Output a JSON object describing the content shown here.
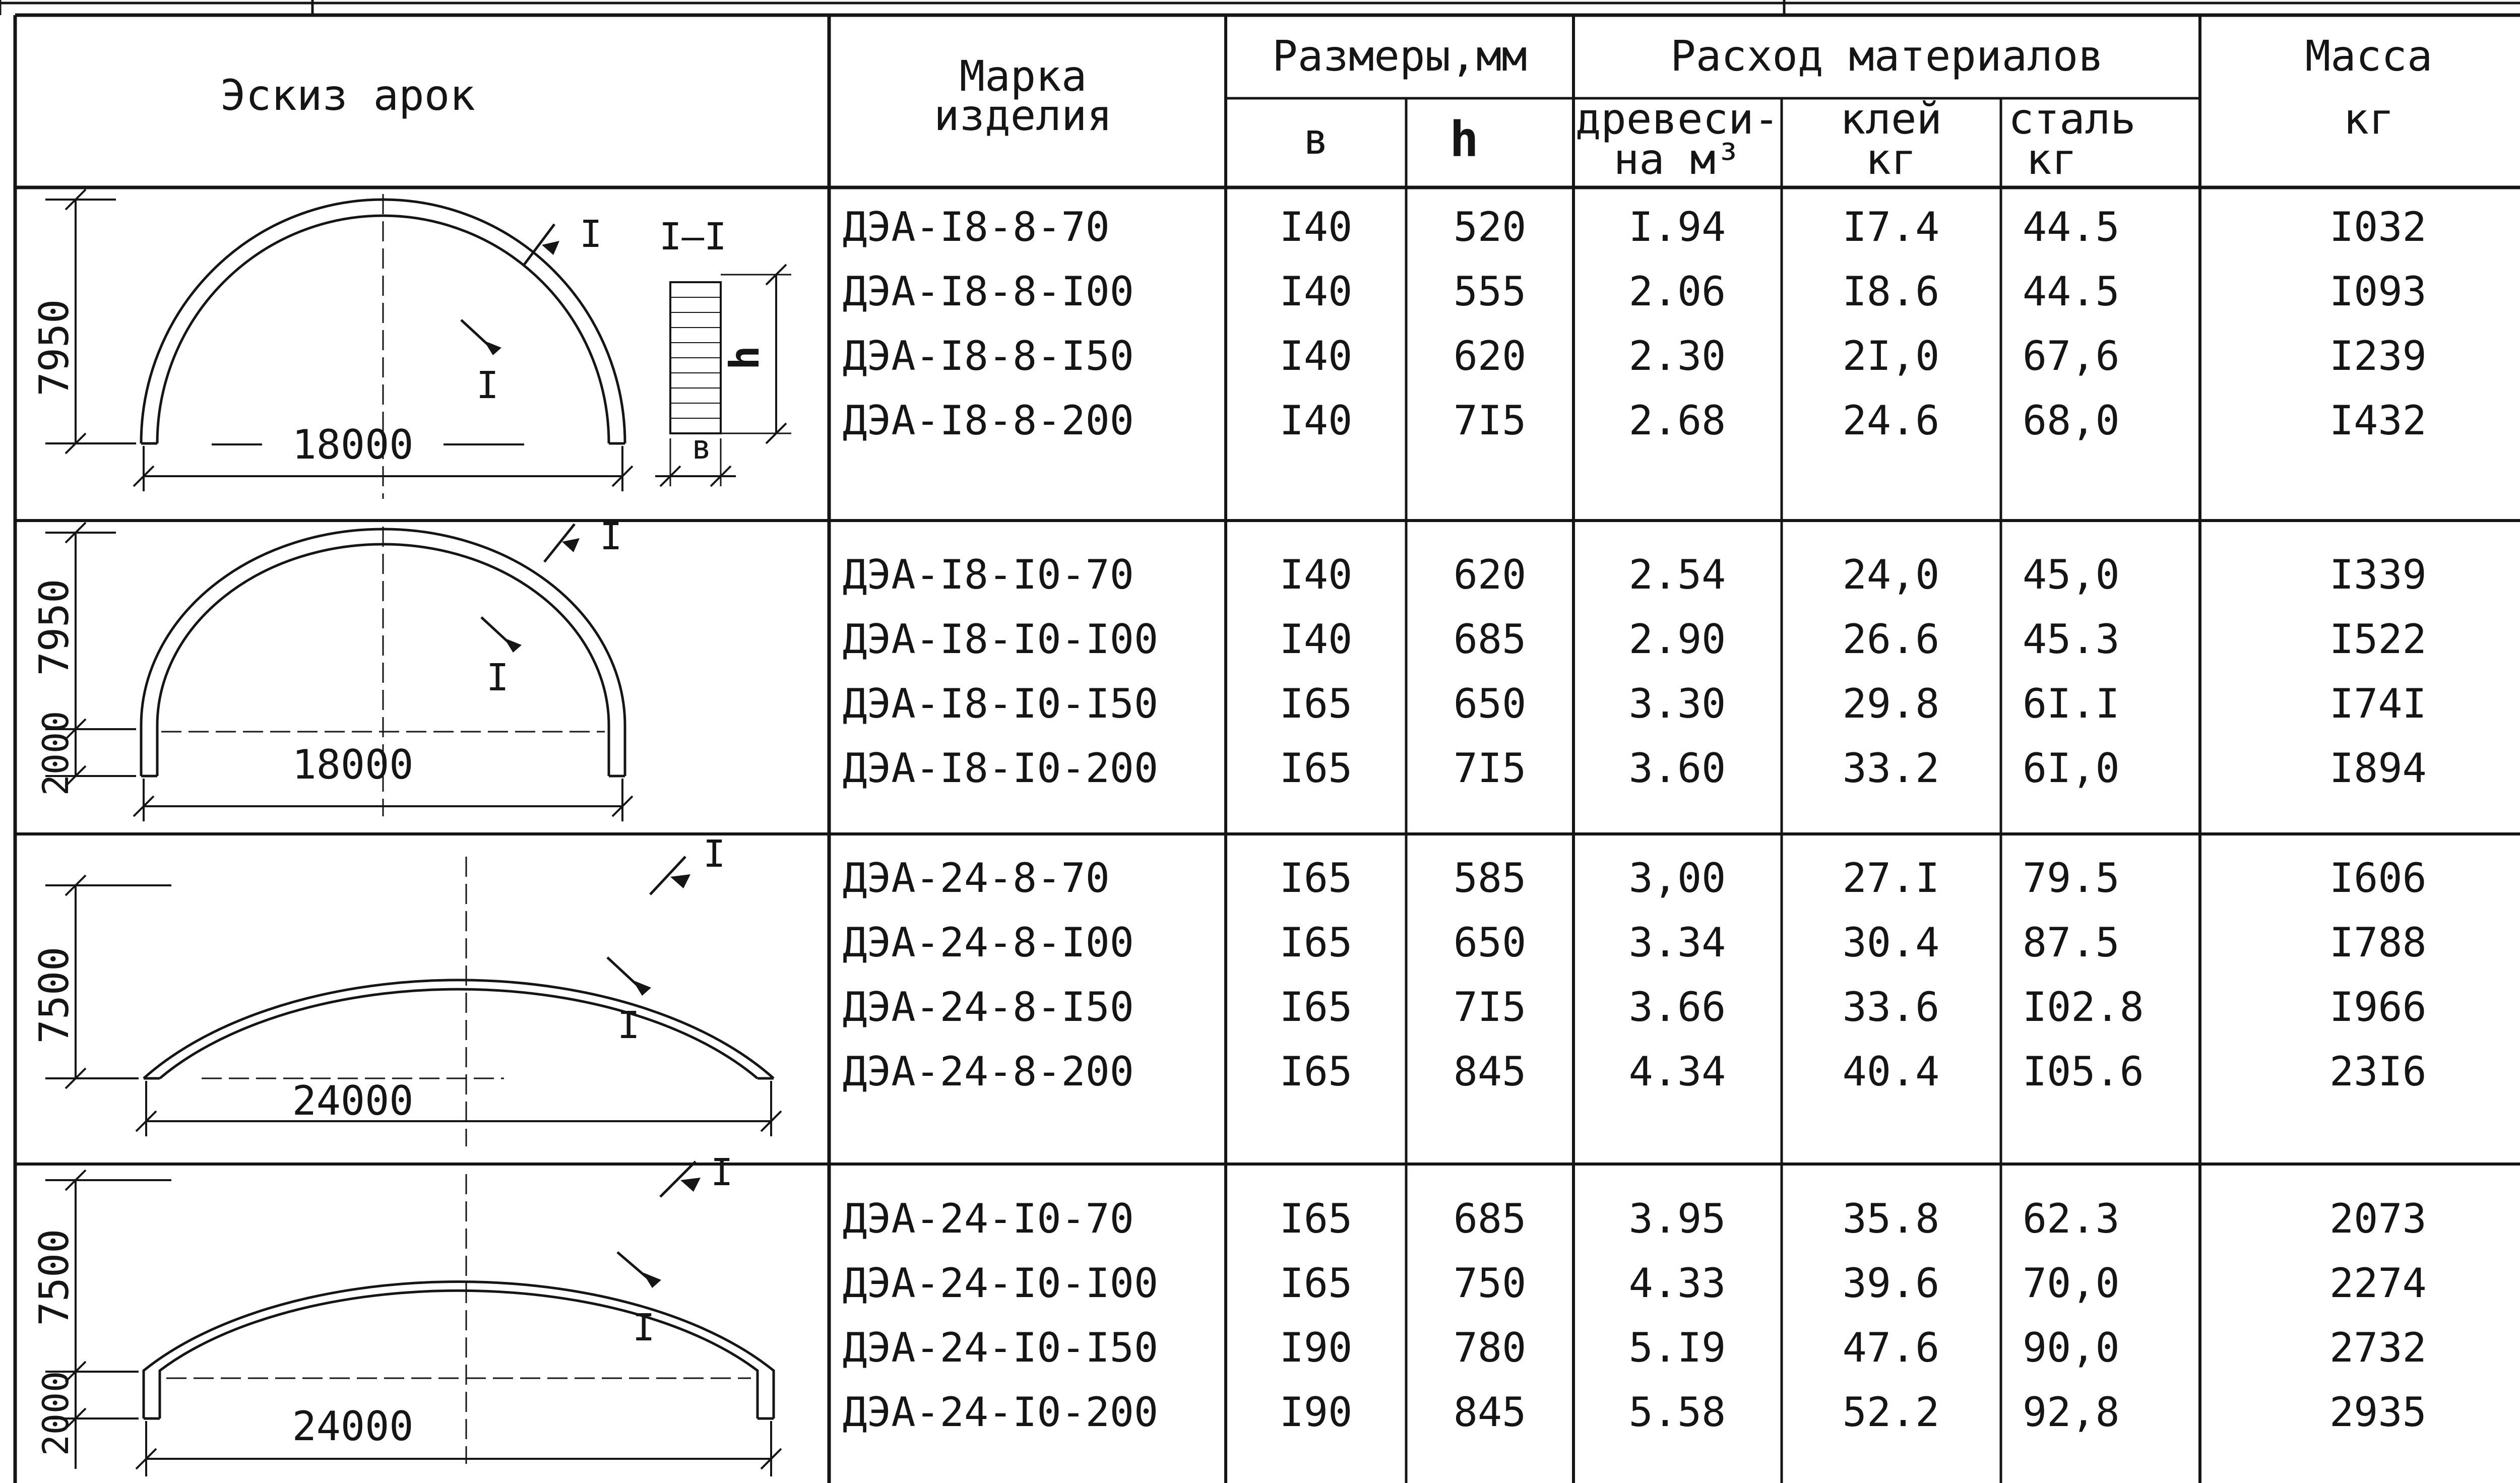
{
  "header": {
    "sketch": "Эскиз арок",
    "mark_line1": "Марка",
    "mark_line2": "изделия",
    "sizes": "Размеры,мм",
    "sizes_b": "в",
    "sizes_h": "h",
    "materials": "Расход материалов",
    "wood_line1": "древеси-",
    "wood_line2": "на м³",
    "glue_line1": "клей",
    "glue_line2": "кг",
    "steel_line1": "сталь",
    "steel_line2": "кг",
    "mass_line1": "Масса",
    "mass_line2": "кг"
  },
  "groups": [
    {
      "sketch": {
        "height_label": "7950",
        "span_label": "18000",
        "wall_label": "",
        "section_mark": "I",
        "section_title": "I–I",
        "section_b": "в",
        "section_h": "h"
      },
      "rows": [
        {
          "mark": "ДЭА-I8-8-70",
          "b": "I40",
          "h": "520",
          "wood": "I.94",
          "glue": "I7.4",
          "steel": "44.5",
          "mass": "I032"
        },
        {
          "mark": "ДЭА-I8-8-I00",
          "b": "I40",
          "h": "555",
          "wood": "2.06",
          "glue": "I8.6",
          "steel": "44.5",
          "mass": "I093"
        },
        {
          "mark": "ДЭА-I8-8-I50",
          "b": "I40",
          "h": "620",
          "wood": "2.30",
          "glue": "2I,0",
          "steel": "67,6",
          "mass": "I239"
        },
        {
          "mark": "ДЭА-I8-8-200",
          "b": "I40",
          "h": "7I5",
          "wood": "2.68",
          "glue": "24.6",
          "steel": "68,0",
          "mass": "I432"
        }
      ]
    },
    {
      "sketch": {
        "height_label": "7950",
        "span_label": "18000",
        "wall_label": "2000",
        "section_mark": "I"
      },
      "rows": [
        {
          "mark": "ДЭА-I8-I0-70",
          "b": "I40",
          "h": "620",
          "wood": "2.54",
          "glue": "24,0",
          "steel": "45,0",
          "mass": "I339"
        },
        {
          "mark": "ДЭА-I8-I0-I00",
          "b": "I40",
          "h": "685",
          "wood": "2.90",
          "glue": "26.6",
          "steel": "45.3",
          "mass": "I522"
        },
        {
          "mark": "ДЭА-I8-I0-I50",
          "b": "I65",
          "h": "650",
          "wood": "3.30",
          "glue": "29.8",
          "steel": "6I.I",
          "mass": "I74I"
        },
        {
          "mark": "ДЭА-I8-I0-200",
          "b": "I65",
          "h": "7I5",
          "wood": "3.60",
          "glue": "33.2",
          "steel": "6I,0",
          "mass": "I894"
        }
      ]
    },
    {
      "sketch": {
        "height_label": "7500",
        "span_label": "24000",
        "wall_label": "",
        "section_mark": "I"
      },
      "rows": [
        {
          "mark": "ДЭА-24-8-70",
          "b": "I65",
          "h": "585",
          "wood": "3,00",
          "glue": "27.I",
          "steel": "79.5",
          "mass": "I606"
        },
        {
          "mark": "ДЭА-24-8-I00",
          "b": "I65",
          "h": "650",
          "wood": "3.34",
          "glue": "30.4",
          "steel": "87.5",
          "mass": "I788"
        },
        {
          "mark": "ДЭА-24-8-I50",
          "b": "I65",
          "h": "7I5",
          "wood": "3.66",
          "glue": "33.6",
          "steel": "I02.8",
          "mass": "I966"
        },
        {
          "mark": "ДЭА-24-8-200",
          "b": "I65",
          "h": "845",
          "wood": "4.34",
          "glue": "40.4",
          "steel": "I05.6",
          "mass": "23I6"
        }
      ]
    },
    {
      "sketch": {
        "height_label": "7500",
        "span_label": "24000",
        "wall_label": "2000",
        "section_mark": "I"
      },
      "rows": [
        {
          "mark": "ДЭА-24-I0-70",
          "b": "I65",
          "h": "685",
          "wood": "3.95",
          "glue": "35.8",
          "steel": "62.3",
          "mass": "2073"
        },
        {
          "mark": "ДЭА-24-I0-I00",
          "b": "I65",
          "h": "750",
          "wood": "4.33",
          "glue": "39.6",
          "steel": "70,0",
          "mass": "2274"
        },
        {
          "mark": "ДЭА-24-I0-I50",
          "b": "I90",
          "h": "780",
          "wood": "5.I9",
          "glue": "47.6",
          "steel": "90,0",
          "mass": "2732"
        },
        {
          "mark": "ДЭА-24-I0-200",
          "b": "I90",
          "h": "845",
          "wood": "5.58",
          "glue": "52.2",
          "steel": "92,8",
          "mass": "2935"
        }
      ]
    }
  ]
}
